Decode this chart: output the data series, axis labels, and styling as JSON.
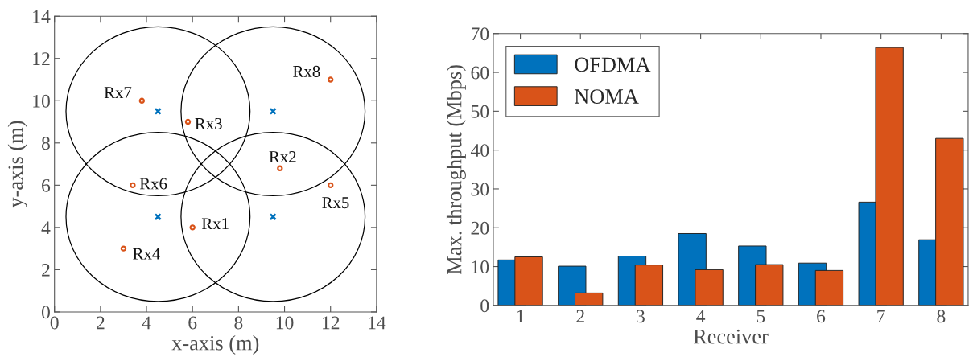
{
  "chart_data": [
    {
      "type": "scatter",
      "xlabel": "x-axis (m)",
      "ylabel": "y-axis (m)",
      "xlim": [
        0,
        14
      ],
      "ylim": [
        0,
        14
      ],
      "xticks": [
        0,
        2,
        4,
        6,
        8,
        10,
        12,
        14
      ],
      "yticks": [
        0,
        2,
        4,
        6,
        8,
        10,
        12,
        14
      ],
      "grid": false,
      "series": [
        {
          "type": "scatter",
          "color": "#0072bd",
          "marker": "cross",
          "x": [
            4.5,
            9.5,
            4.5,
            9.5
          ],
          "values": [
            9.5,
            9.5,
            4.5,
            4.5
          ]
        },
        {
          "type": "scatter",
          "color": "#d95319",
          "marker": "circle",
          "x": [
            6,
            9.8,
            5.8,
            3,
            12,
            3.4,
            3.8,
            12
          ],
          "values": [
            4,
            6.8,
            9,
            3,
            6,
            6,
            10,
            11
          ]
        }
      ],
      "annotations": [
        {
          "text": "Rx1",
          "x": 6,
          "y": 4
        },
        {
          "text": "Rx2",
          "x": 9.8,
          "y": 6.8
        },
        {
          "text": "Rx3",
          "x": 5.8,
          "y": 9
        },
        {
          "text": "Rx4",
          "x": 3,
          "y": 3
        },
        {
          "text": "Rx5",
          "x": 12,
          "y": 6
        },
        {
          "text": "Rx6",
          "x": 3.4,
          "y": 6
        },
        {
          "text": "Rx7",
          "x": 3.8,
          "y": 10
        },
        {
          "text": "Rx8",
          "x": 12,
          "y": 11
        }
      ]
    },
    {
      "type": "bar",
      "xlabel": "Receiver",
      "ylabel": "Max. throughput (Mbps)",
      "categories": [
        "1",
        "2",
        "3",
        "4",
        "5",
        "6",
        "7",
        "8"
      ],
      "ylim": [
        0,
        70
      ],
      "yticks": [
        0,
        10,
        20,
        30,
        40,
        50,
        60,
        70
      ],
      "grid": false,
      "legend": "top left",
      "series": [
        {
          "name": "OFDMA",
          "color": "#0072bd",
          "values": [
            11.7,
            10.1,
            12.7,
            18.5,
            15.3,
            10.9,
            26.6,
            16.9
          ]
        },
        {
          "name": "NOMA",
          "color": "#d95319",
          "values": [
            12.5,
            3.2,
            10.4,
            9.2,
            10.5,
            9.0,
            66.4,
            43.0
          ]
        }
      ]
    }
  ]
}
